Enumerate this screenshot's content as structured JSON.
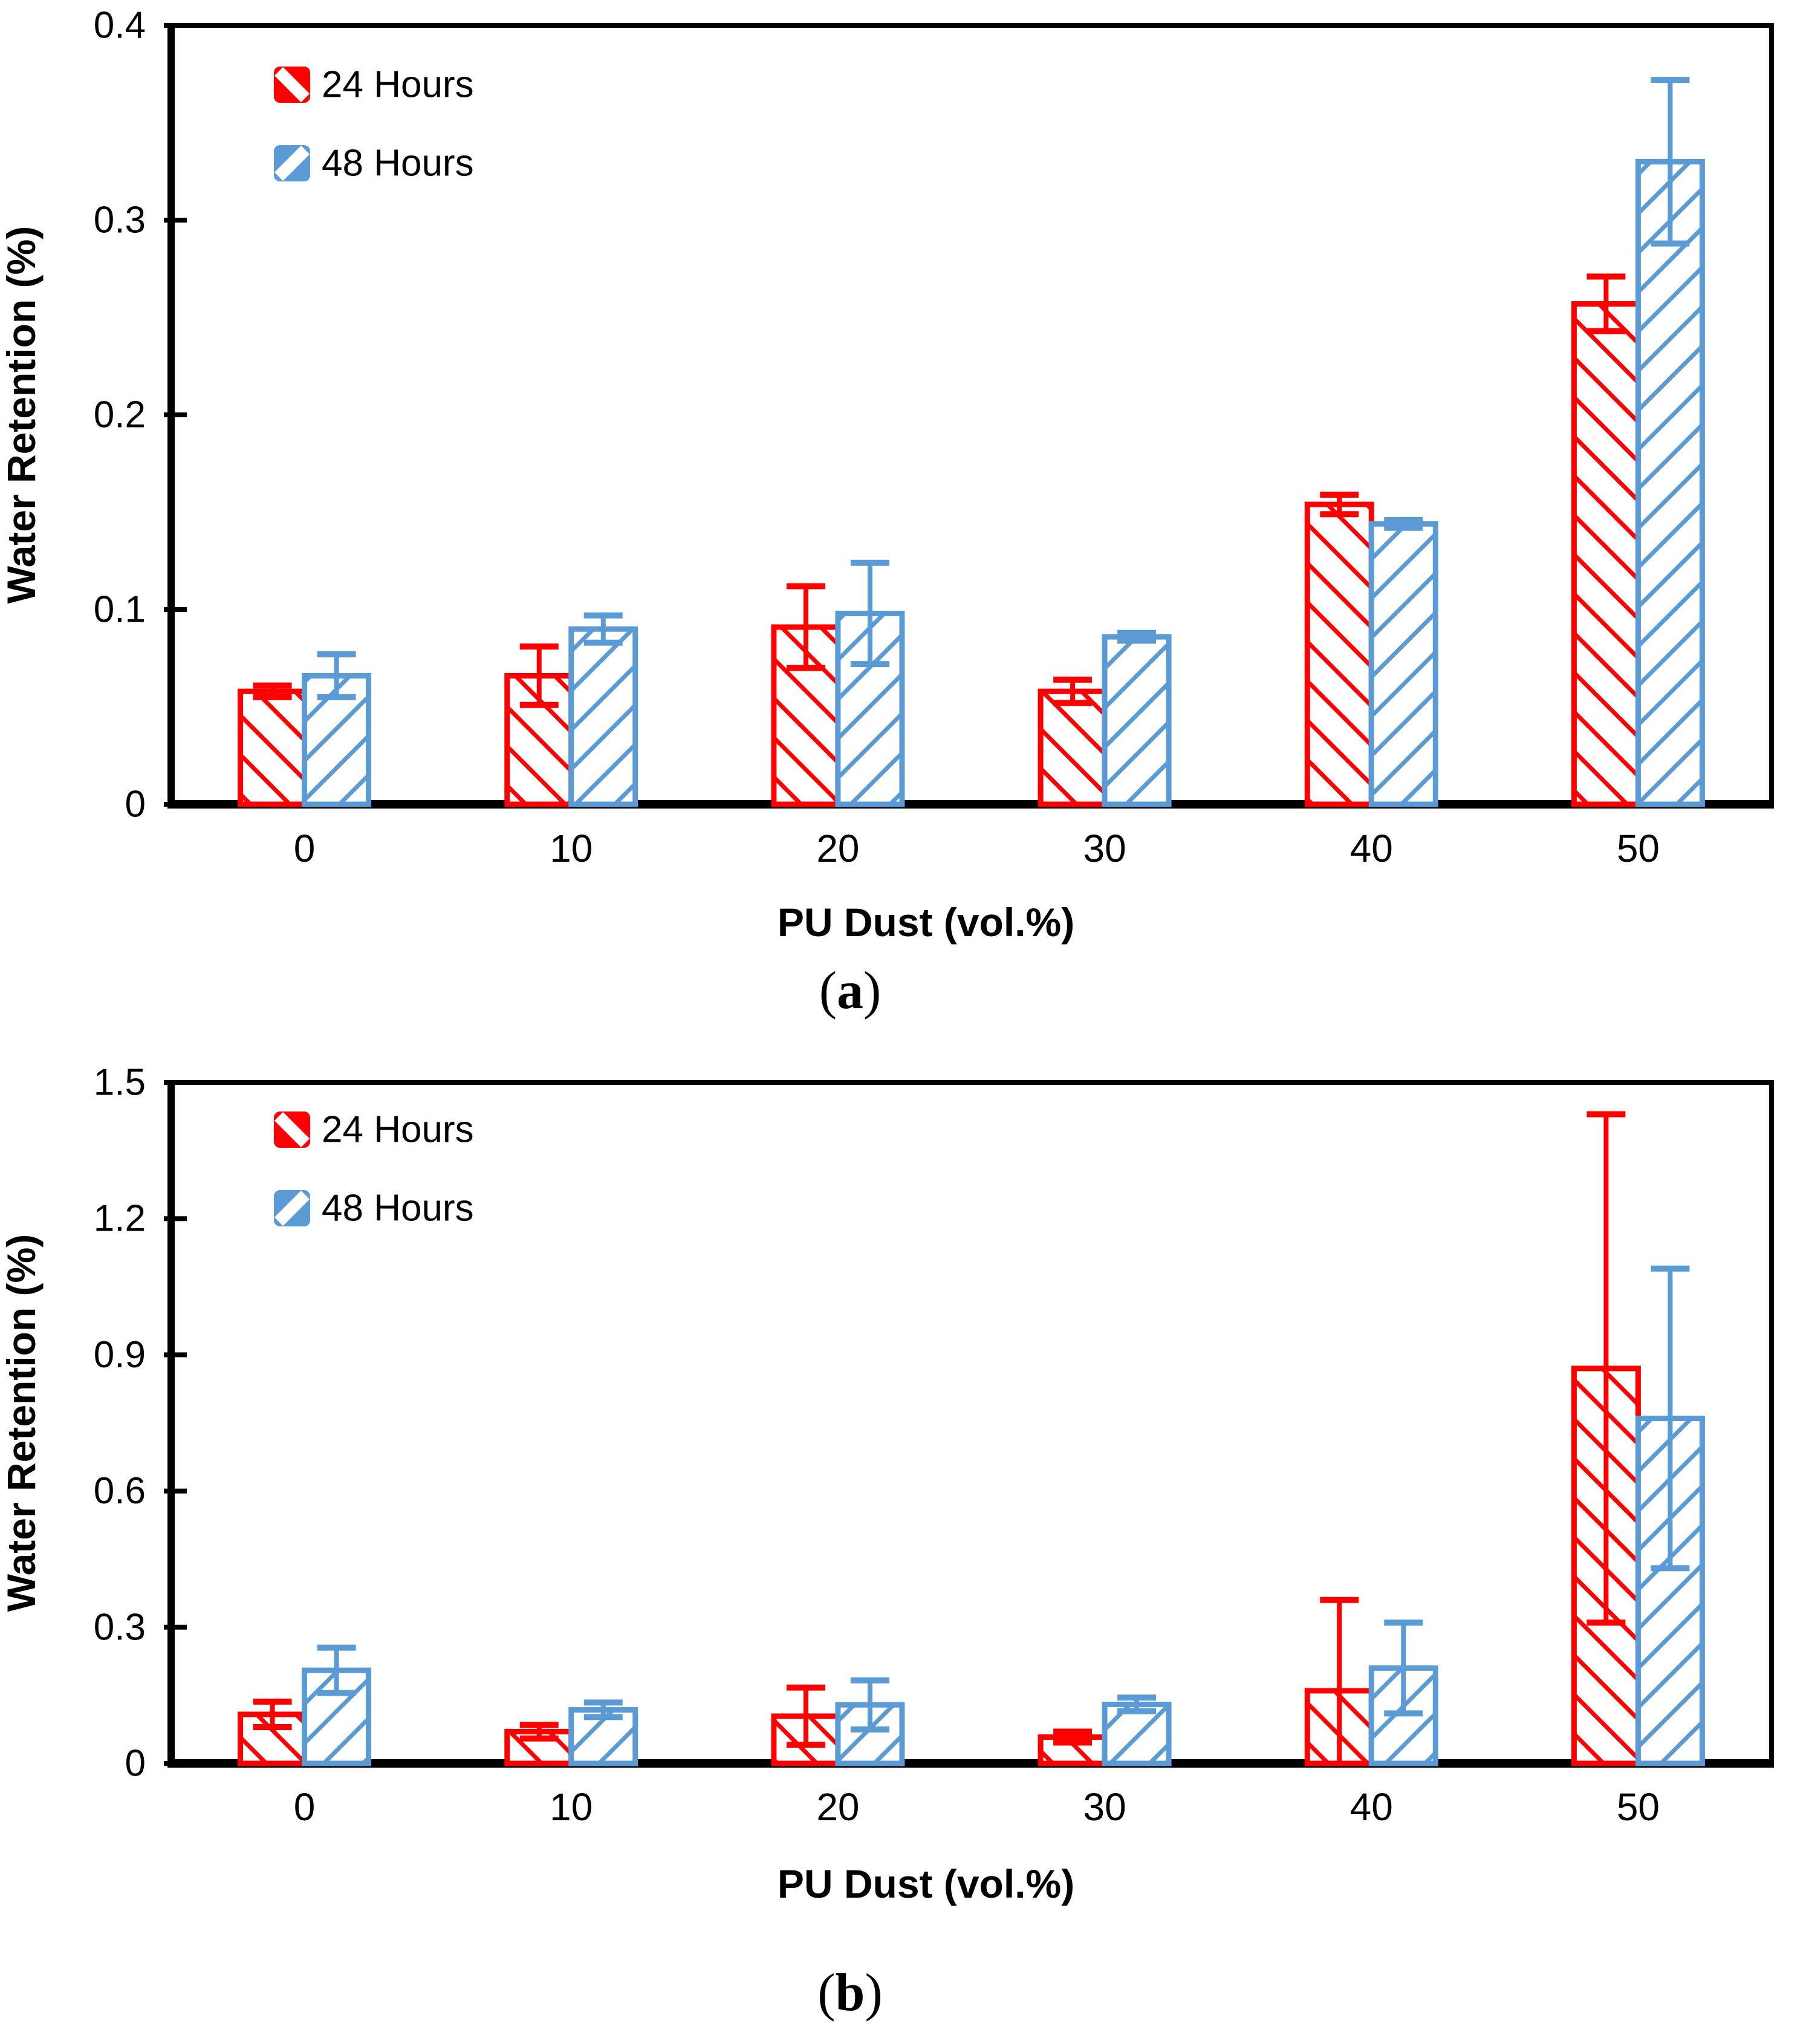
{
  "page": {
    "background": "#ffffff"
  },
  "chart_data": [
    {
      "panel": "a",
      "type": "bar",
      "title": "",
      "categories": [
        "0",
        "10",
        "20",
        "30",
        "40",
        "50"
      ],
      "xlabel": "PU Dust (vol.%)",
      "ylabel": "Water Retention (%)",
      "ylim": [
        0,
        0.4
      ],
      "yticks": [
        0,
        0.1,
        0.2,
        0.3,
        0.4
      ],
      "ytick_labels": [
        "0",
        "0.1",
        "0.2",
        "0.3",
        "0.4"
      ],
      "grid": false,
      "legend_position": "top-left-inside",
      "caption": {
        "open": "(",
        "letter": "a",
        "close": ")"
      },
      "series": [
        {
          "name": "24 Hours",
          "color": "#FF0000",
          "hatch": "\\",
          "values": [
            0.058,
            0.066,
            0.091,
            0.058,
            0.154,
            0.257
          ],
          "errors": [
            0.003,
            0.015,
            0.021,
            0.006,
            0.005,
            0.014
          ]
        },
        {
          "name": "48 Hours",
          "color": "#5B9BD5",
          "hatch": "/",
          "values": [
            0.066,
            0.09,
            0.098,
            0.086,
            0.144,
            0.33
          ],
          "errors": [
            0.011,
            0.007,
            0.026,
            0.002,
            0.002,
            0.042
          ]
        }
      ]
    },
    {
      "panel": "b",
      "type": "bar",
      "title": "",
      "categories": [
        "0",
        "10",
        "20",
        "30",
        "40",
        "50"
      ],
      "xlabel": "PU Dust (vol.%)",
      "ylabel": "Water Retention (%)",
      "ylim": [
        0,
        1.5
      ],
      "yticks": [
        0,
        0.3,
        0.6,
        0.9,
        1.2,
        1.5
      ],
      "ytick_labels": [
        "0",
        "0.3",
        "0.6",
        "0.9",
        "1.2",
        "1.5"
      ],
      "grid": false,
      "legend_position": "top-left-inside",
      "caption": {
        "open": "(",
        "letter": "b",
        "close": ")"
      },
      "series": [
        {
          "name": "24 Hours",
          "color": "#FF0000",
          "hatch": "\\",
          "values": [
            0.108,
            0.07,
            0.104,
            0.058,
            0.16,
            0.87
          ],
          "errors": [
            0.028,
            0.015,
            0.063,
            0.012,
            0.2,
            0.56
          ]
        },
        {
          "name": "48 Hours",
          "color": "#5B9BD5",
          "hatch": "/",
          "values": [
            0.205,
            0.118,
            0.129,
            0.13,
            0.21,
            0.76
          ],
          "errors": [
            0.05,
            0.016,
            0.054,
            0.015,
            0.1,
            0.33
          ]
        }
      ]
    }
  ]
}
